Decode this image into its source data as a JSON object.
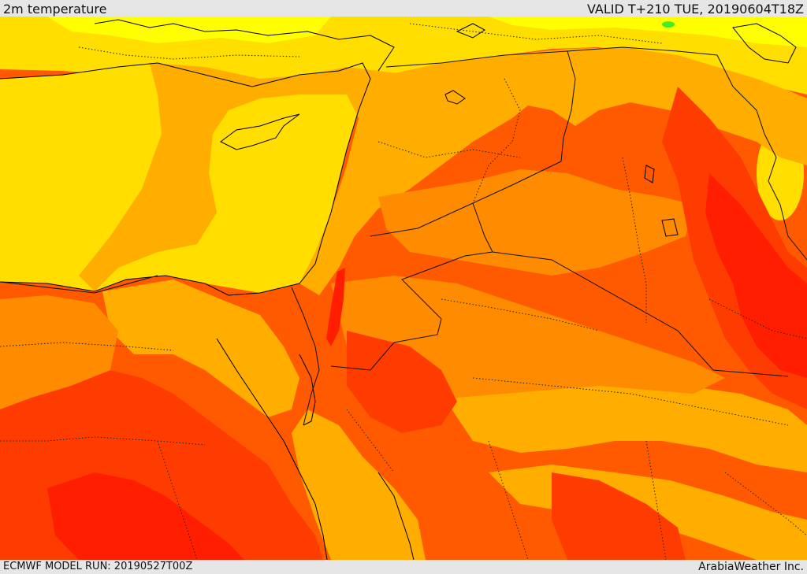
{
  "header": {
    "title": "2m temperature",
    "valid": "VALID T+210 TUE, 20190604T18Z"
  },
  "footer": {
    "model_run": "ECMWF MODEL RUN: 20190527T00Z",
    "brand": "ArabiaWeather Inc."
  },
  "colors": {
    "yellow": "#ffde00",
    "lemon": "#ffff00",
    "light_orange": "#ffae00",
    "orange": "#ff8c00",
    "dark_orange": "#ff5a00",
    "red_orange": "#ff3c00",
    "red": "#ff1e00",
    "green": "#44ee22"
  }
}
